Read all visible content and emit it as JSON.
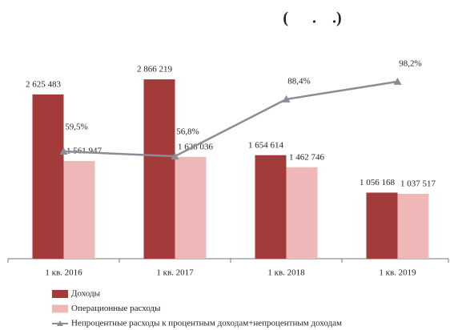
{
  "chart_data": {
    "type": "bar",
    "title": "(      .    .)",
    "categories": [
      "1 кв. 2016",
      "1 кв. 2017",
      "1 кв. 2018",
      "1 кв. 2019"
    ],
    "ylim": [
      0,
      3200000
    ],
    "y2lim": [
      0,
      111
    ],
    "series": [
      {
        "name": "Доходы",
        "color": "#a33b3b",
        "values": [
          2625483,
          2866219,
          1654614,
          1056168
        ],
        "value_labels": [
          "2 625 483",
          "2 866 219",
          "1 654 614",
          "1 056 168"
        ]
      },
      {
        "name": "Операционные расходы",
        "color": "#efb8b8",
        "values": [
          1561947,
          1628036,
          1462746,
          1037517
        ],
        "value_labels": [
          "1 561 947",
          "1 628 036",
          "1 462 746",
          "1 037 517"
        ]
      },
      {
        "name": "Непроцентные расходы к процентным доходам+непроцентным доходам",
        "type": "line",
        "axis": "y2",
        "color": "#8c8c96",
        "values": [
          59.5,
          56.8,
          88.4,
          98.2
        ],
        "value_labels": [
          "59,5%",
          "56,8%",
          "88,4%",
          "98,2%"
        ]
      }
    ],
    "legend": "bottom-left"
  }
}
